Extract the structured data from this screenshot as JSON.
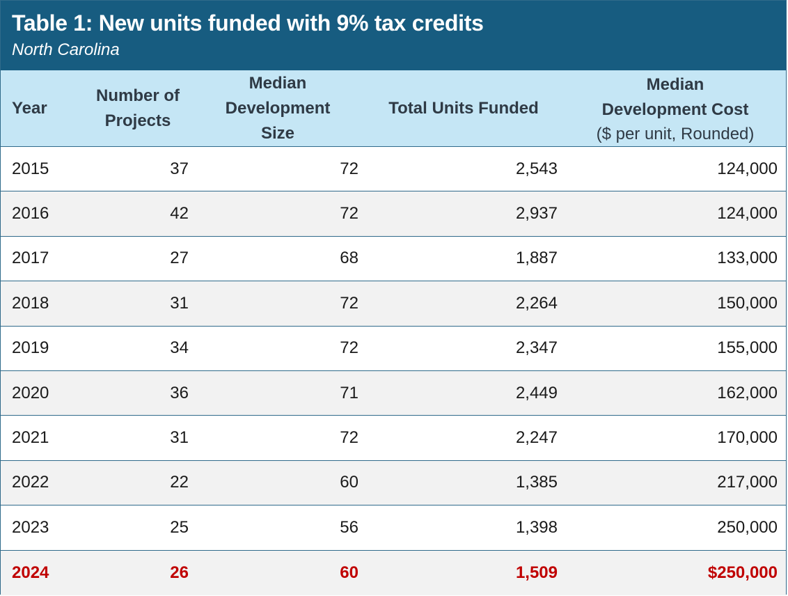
{
  "chart_data": {
    "type": "table",
    "title": "Table 1: New units funded with 9% tax credits",
    "subtitle": "North Carolina",
    "columns": [
      {
        "lines": [
          "Year"
        ]
      },
      {
        "lines": [
          "Number of",
          "Projects"
        ]
      },
      {
        "lines": [
          "Median",
          "Development",
          "Size"
        ]
      },
      {
        "lines": [
          "Total Units Funded"
        ]
      },
      {
        "lines": [
          "Median",
          "Development Cost"
        ],
        "note": "($ per unit, Rounded)"
      }
    ],
    "rows": [
      {
        "year": "2015",
        "projects": "37",
        "size": "72",
        "units": "2,543",
        "cost": "124,000"
      },
      {
        "year": "2016",
        "projects": "42",
        "size": "72",
        "units": "2,937",
        "cost": "124,000"
      },
      {
        "year": "2017",
        "projects": "27",
        "size": "68",
        "units": "1,887",
        "cost": "133,000"
      },
      {
        "year": "2018",
        "projects": "31",
        "size": "72",
        "units": "2,264",
        "cost": "150,000"
      },
      {
        "year": "2019",
        "projects": "34",
        "size": "72",
        "units": "2,347",
        "cost": "155,000"
      },
      {
        "year": "2020",
        "projects": "36",
        "size": "71",
        "units": "2,449",
        "cost": "162,000"
      },
      {
        "year": "2021",
        "projects": "31",
        "size": "72",
        "units": "2,247",
        "cost": "170,000"
      },
      {
        "year": "2022",
        "projects": "22",
        "size": "60",
        "units": "1,385",
        "cost": "217,000"
      },
      {
        "year": "2023",
        "projects": "25",
        "size": "56",
        "units": "1,398",
        "cost": "250,000"
      },
      {
        "year": "2024",
        "projects": "26",
        "size": "60",
        "units": "1,509",
        "cost": "$250,000",
        "highlight": true
      }
    ],
    "colors": {
      "title_bar": "#175c80",
      "header_bg": "#c5e6f5",
      "alt_row_bg": "#f2f2f2",
      "highlight_text": "#c00000"
    }
  }
}
